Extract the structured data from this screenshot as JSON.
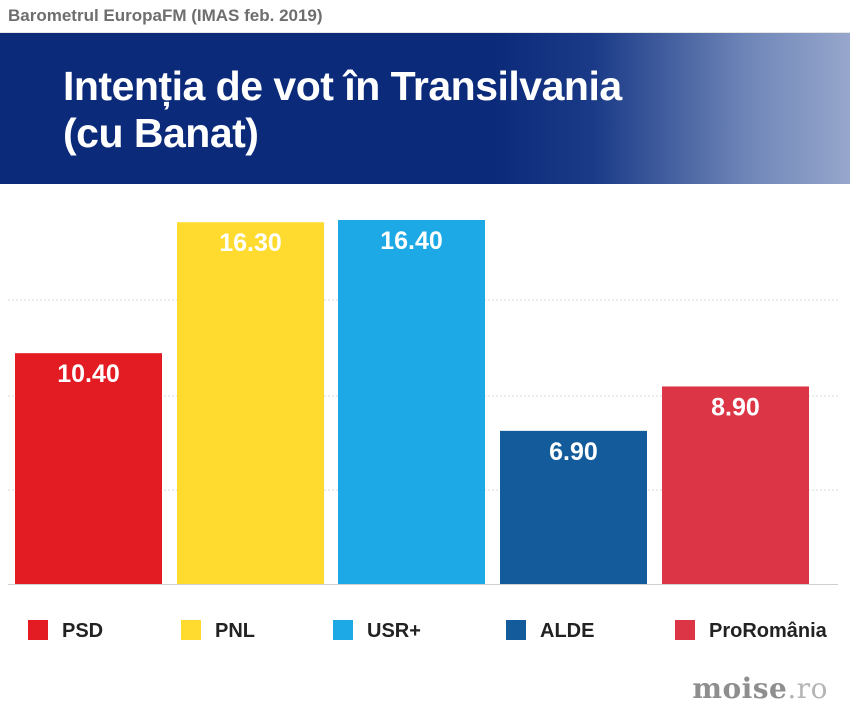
{
  "source_label": "Barometrul EuropaFM (IMAS feb. 2019)",
  "header": {
    "title_line1": "Intenția de vot în Transilvania",
    "title_line2": "(cu Banat)"
  },
  "brand": {
    "name": "moise",
    "suffix": ".ro"
  },
  "colors": {
    "header_bg": "#0b2a7a",
    "PSD": "#e31b23",
    "PNL": "#fedb2e",
    "USR+": "#1da9e6",
    "ALDE": "#145b9b",
    "ProRomânia": "#dc3545"
  },
  "chart_data": {
    "type": "bar",
    "title": "Intenția de vot în Transilvania (cu Banat)",
    "categories": [
      "PSD",
      "PNL",
      "USR+",
      "ALDE",
      "ProRomânia"
    ],
    "values": [
      10.4,
      16.3,
      16.4,
      6.9,
      8.9
    ],
    "value_labels": [
      "10.40",
      "16.30",
      "16.40",
      "6.90",
      "8.90"
    ],
    "ylim": [
      0,
      16.4
    ],
    "grid": true,
    "legend": "bottom",
    "xlabel": "",
    "ylabel": ""
  }
}
